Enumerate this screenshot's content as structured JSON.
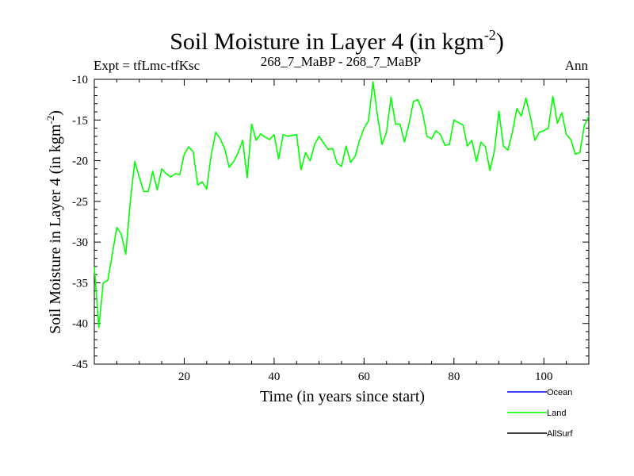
{
  "chart_data": {
    "type": "line",
    "title": "Soil Moisture in Layer 4 (in kgm",
    "title_sup": "-2",
    "title_end": ")",
    "subtitle_left": "Expt = tfLmc-tfKsc",
    "subtitle_center": "268_7_MaBP - 268_7_MaBP",
    "subtitle_right": "Ann",
    "xlabel": "Time (in years since start)",
    "ylabel": "Soil Moisture in Layer 4 (in kgm",
    "ylabel_sup": "-2",
    "ylabel_end": ")",
    "xlim": [
      0,
      110
    ],
    "ylim": [
      -45,
      -10
    ],
    "xticks": [
      20,
      40,
      60,
      80,
      100
    ],
    "yticks": [
      -10,
      -15,
      -20,
      -25,
      -30,
      -35,
      -40,
      -45
    ],
    "series": [
      {
        "name": "Ocean",
        "color": "#0000ff",
        "values": []
      },
      {
        "name": "Land",
        "color": "#00ff00",
        "x": [
          0,
          1,
          2,
          3,
          4,
          5,
          6,
          7,
          8,
          9,
          10,
          11,
          12,
          13,
          14,
          15,
          16,
          17,
          18,
          19,
          20,
          21,
          22,
          23,
          24,
          25,
          26,
          27,
          28,
          29,
          30,
          31,
          32,
          33,
          34,
          35,
          36,
          37,
          38,
          39,
          40,
          41,
          42,
          43,
          44,
          45,
          46,
          47,
          48,
          49,
          50,
          51,
          52,
          53,
          54,
          55,
          56,
          57,
          58,
          59,
          60,
          61,
          62,
          63,
          64,
          65,
          66,
          67,
          68,
          69,
          70,
          71,
          72,
          73,
          74,
          75,
          76,
          77,
          78,
          79,
          80,
          81,
          82,
          83,
          84,
          85,
          86,
          87,
          88,
          89,
          90,
          91,
          92,
          93,
          94,
          95,
          96,
          97,
          98,
          99,
          100,
          101,
          102,
          103,
          104,
          105,
          106,
          107,
          108,
          109,
          110
        ],
        "values": [
          -33.0,
          -40.5,
          -35.0,
          -34.7,
          -31.5,
          -28.2,
          -29.0,
          -31.5,
          -25.0,
          -20.1,
          -22.0,
          -23.8,
          -23.8,
          -21.3,
          -23.6,
          -21.0,
          -21.6,
          -22.0,
          -21.6,
          -21.7,
          -19.2,
          -18.3,
          -18.9,
          -23.0,
          -22.6,
          -23.5,
          -19.3,
          -16.5,
          -17.3,
          -18.5,
          -20.8,
          -20.1,
          -19.0,
          -17.5,
          -22.1,
          -15.5,
          -17.5,
          -16.7,
          -17.1,
          -17.4,
          -16.8,
          -19.8,
          -16.8,
          -17.0,
          -16.9,
          -16.8,
          -21.1,
          -19.0,
          -20.0,
          -18.0,
          -17.0,
          -17.8,
          -18.6,
          -18.5,
          -20.3,
          -20.7,
          -18.2,
          -20.2,
          -19.5,
          -17.5,
          -16.0,
          -15.1,
          -10.3,
          -14.5,
          -18.0,
          -16.5,
          -12.2,
          -15.5,
          -15.5,
          -17.7,
          -15.5,
          -12.7,
          -12.5,
          -14.0,
          -17.0,
          -17.3,
          -16.3,
          -16.8,
          -18.1,
          -18.0,
          -15.0,
          -15.3,
          -15.6,
          -18.2,
          -17.5,
          -20.1,
          -17.7,
          -18.3,
          -21.2,
          -18.8,
          -13.9,
          -18.2,
          -18.7,
          -16.5,
          -13.6,
          -14.5,
          -12.3,
          -14.6,
          -17.5,
          -16.5,
          -16.3,
          -16.0,
          -12.1,
          -15.4,
          -14.1,
          -16.8,
          -17.4,
          -19.2,
          -19.0,
          -15.7,
          -14.5
        ]
      },
      {
        "name": "AllSurf",
        "color": "#000000",
        "values": []
      }
    ]
  }
}
